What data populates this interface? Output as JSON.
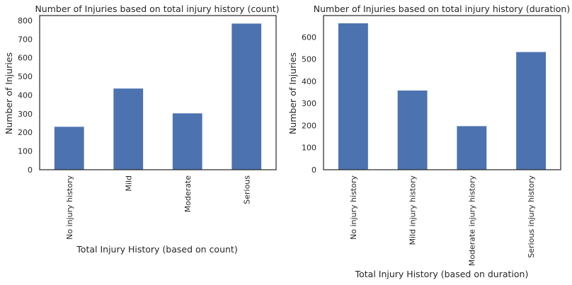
{
  "chart_data": [
    {
      "type": "bar",
      "title": "Number of Injuries based on total injury history (count)",
      "xlabel": "Total Injury History (based on count)",
      "ylabel": "Number of Injuries",
      "categories": [
        "No injury history",
        "Mild",
        "Moderate",
        "Serious"
      ],
      "values": [
        230,
        435,
        302,
        783
      ],
      "ylim": [
        0,
        826
      ],
      "yticks": [
        0,
        100,
        200,
        300,
        400,
        500,
        600,
        700,
        800
      ],
      "bar_color": "#4c72b0",
      "grid": false
    },
    {
      "type": "bar",
      "title": "Number of Injuries based on total injury history (duration)",
      "xlabel": "Total Injury History (based on duration)",
      "ylabel": "Number of Injuries",
      "categories": [
        "No injury history",
        "Mild injury history",
        "Moderate injury history",
        "Serious injury history"
      ],
      "values": [
        662,
        358,
        197,
        532
      ],
      "ylim": [
        0,
        697
      ],
      "yticks": [
        0,
        100,
        200,
        300,
        400,
        500,
        600
      ],
      "bar_color": "#4c72b0",
      "grid": false
    }
  ]
}
